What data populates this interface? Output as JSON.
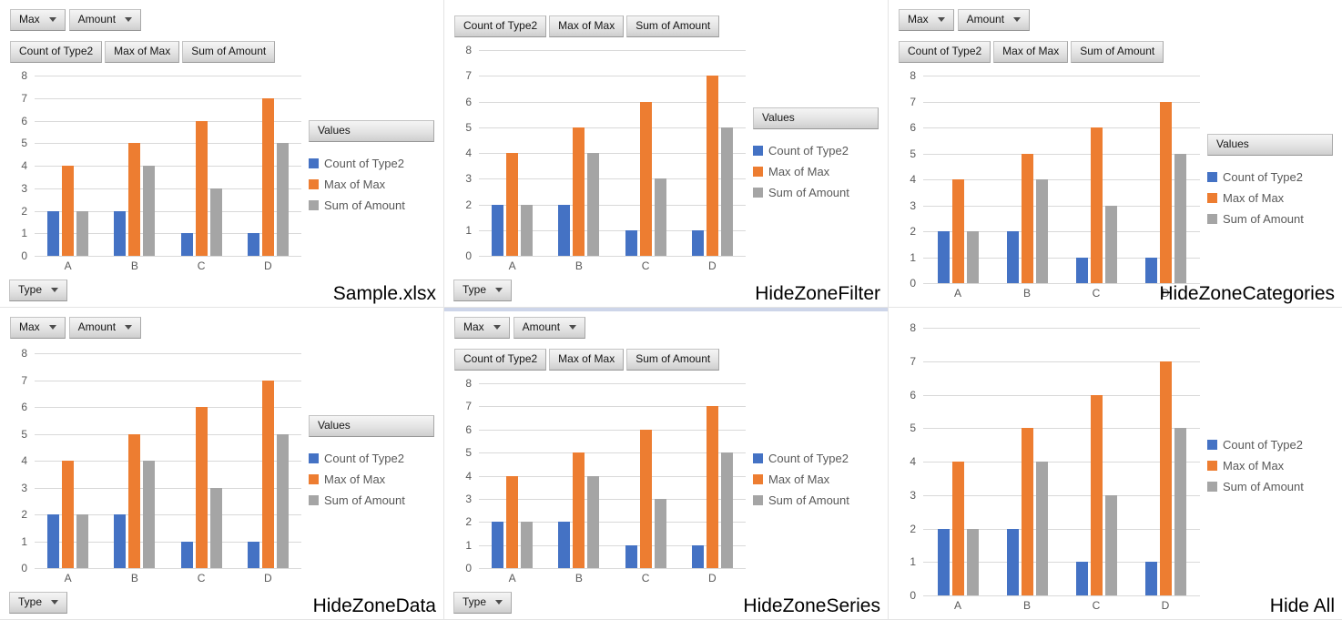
{
  "shared": {
    "filter_buttons": [
      {
        "label": "Max"
      },
      {
        "label": "Amount"
      }
    ],
    "value_field_buttons": [
      "Count of Type2",
      "Max of Max",
      "Sum of Amount"
    ],
    "values_legend_label": "Values",
    "category_field_button_label": "Type",
    "colors": {
      "series_blue": "#4472C4",
      "series_orange": "#ED7D31",
      "series_gray": "#A5A5A5",
      "gridline": "#D9D9D9",
      "axis_text": "#595959"
    }
  },
  "chart_data": {
    "type": "bar",
    "title": "",
    "xlabel": "",
    "ylabel": "",
    "categories": [
      "A",
      "B",
      "C",
      "D"
    ],
    "series": [
      {
        "name": "Count of Type2",
        "color": "#4472C4",
        "values": [
          2,
          2,
          1,
          1
        ]
      },
      {
        "name": "Max of Max",
        "color": "#ED7D31",
        "values": [
          4,
          5,
          6,
          7
        ]
      },
      {
        "name": "Sum of Amount",
        "color": "#A5A5A5",
        "values": [
          2,
          4,
          3,
          5
        ]
      }
    ],
    "ylim": [
      0,
      8
    ],
    "yticks": [
      0,
      1,
      2,
      3,
      4,
      5,
      6,
      7,
      8
    ],
    "grid": true,
    "legend_position": "right"
  },
  "panels": [
    {
      "id": "sample-xlsx",
      "label": "Sample.xlsx",
      "filter_buttons": true,
      "value_field_buttons": true,
      "values_legend_button": true,
      "category_field_button": true,
      "top_strip": false
    },
    {
      "id": "hide-zone-filter",
      "label": "HideZoneFilter",
      "filter_buttons": false,
      "value_field_buttons": true,
      "values_legend_button": true,
      "category_field_button": true,
      "top_strip": false
    },
    {
      "id": "hide-zone-categories",
      "label": "HideZoneCategories",
      "filter_buttons": true,
      "value_field_buttons": true,
      "values_legend_button": true,
      "category_field_button": false,
      "top_strip": false
    },
    {
      "id": "hide-zone-data",
      "label": "HideZoneData",
      "filter_buttons": true,
      "value_field_buttons": false,
      "values_legend_button": true,
      "category_field_button": true,
      "top_strip": false
    },
    {
      "id": "hide-zone-series",
      "label": "HideZoneSeries",
      "filter_buttons": true,
      "value_field_buttons": true,
      "values_legend_button": false,
      "category_field_button": true,
      "top_strip": true
    },
    {
      "id": "hide-all",
      "label": "Hide All",
      "filter_buttons": false,
      "value_field_buttons": false,
      "values_legend_button": false,
      "category_field_button": false,
      "top_strip": false
    }
  ]
}
